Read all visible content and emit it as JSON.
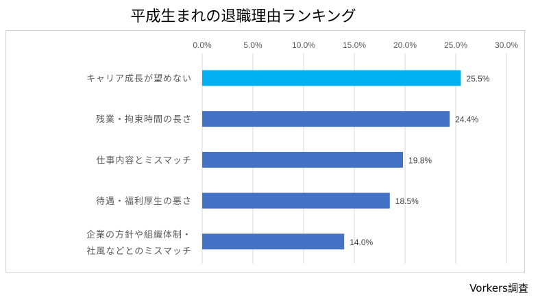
{
  "chart_data": {
    "type": "bar",
    "orientation": "horizontal",
    "title": "平成生まれの退職理由ランキング",
    "categories": [
      "キャリア成長が望めない",
      "残業・拘束時間の長さ",
      "仕事内容とミスマッチ",
      "待遇・福利厚生の悪さ",
      "企業の方針や組織体制・\n社風などとのミスマッチ"
    ],
    "values": [
      25.5,
      24.4,
      19.8,
      18.5,
      14.0
    ],
    "value_labels": [
      "25.5%",
      "24.4%",
      "19.8%",
      "18.5%",
      "14.0%"
    ],
    "xlim": [
      0,
      30
    ],
    "xticks": [
      "0.0%",
      "5.0%",
      "10.0%",
      "15.0%",
      "20.0%",
      "25.0%",
      "30.0%"
    ],
    "axis_position": "top",
    "grid": true,
    "colors": {
      "highlight": "#00b0f0",
      "default": "#4472c4",
      "grid": "#d9d9d9"
    },
    "highlight_index": 0
  },
  "source": "Vorkers調査"
}
